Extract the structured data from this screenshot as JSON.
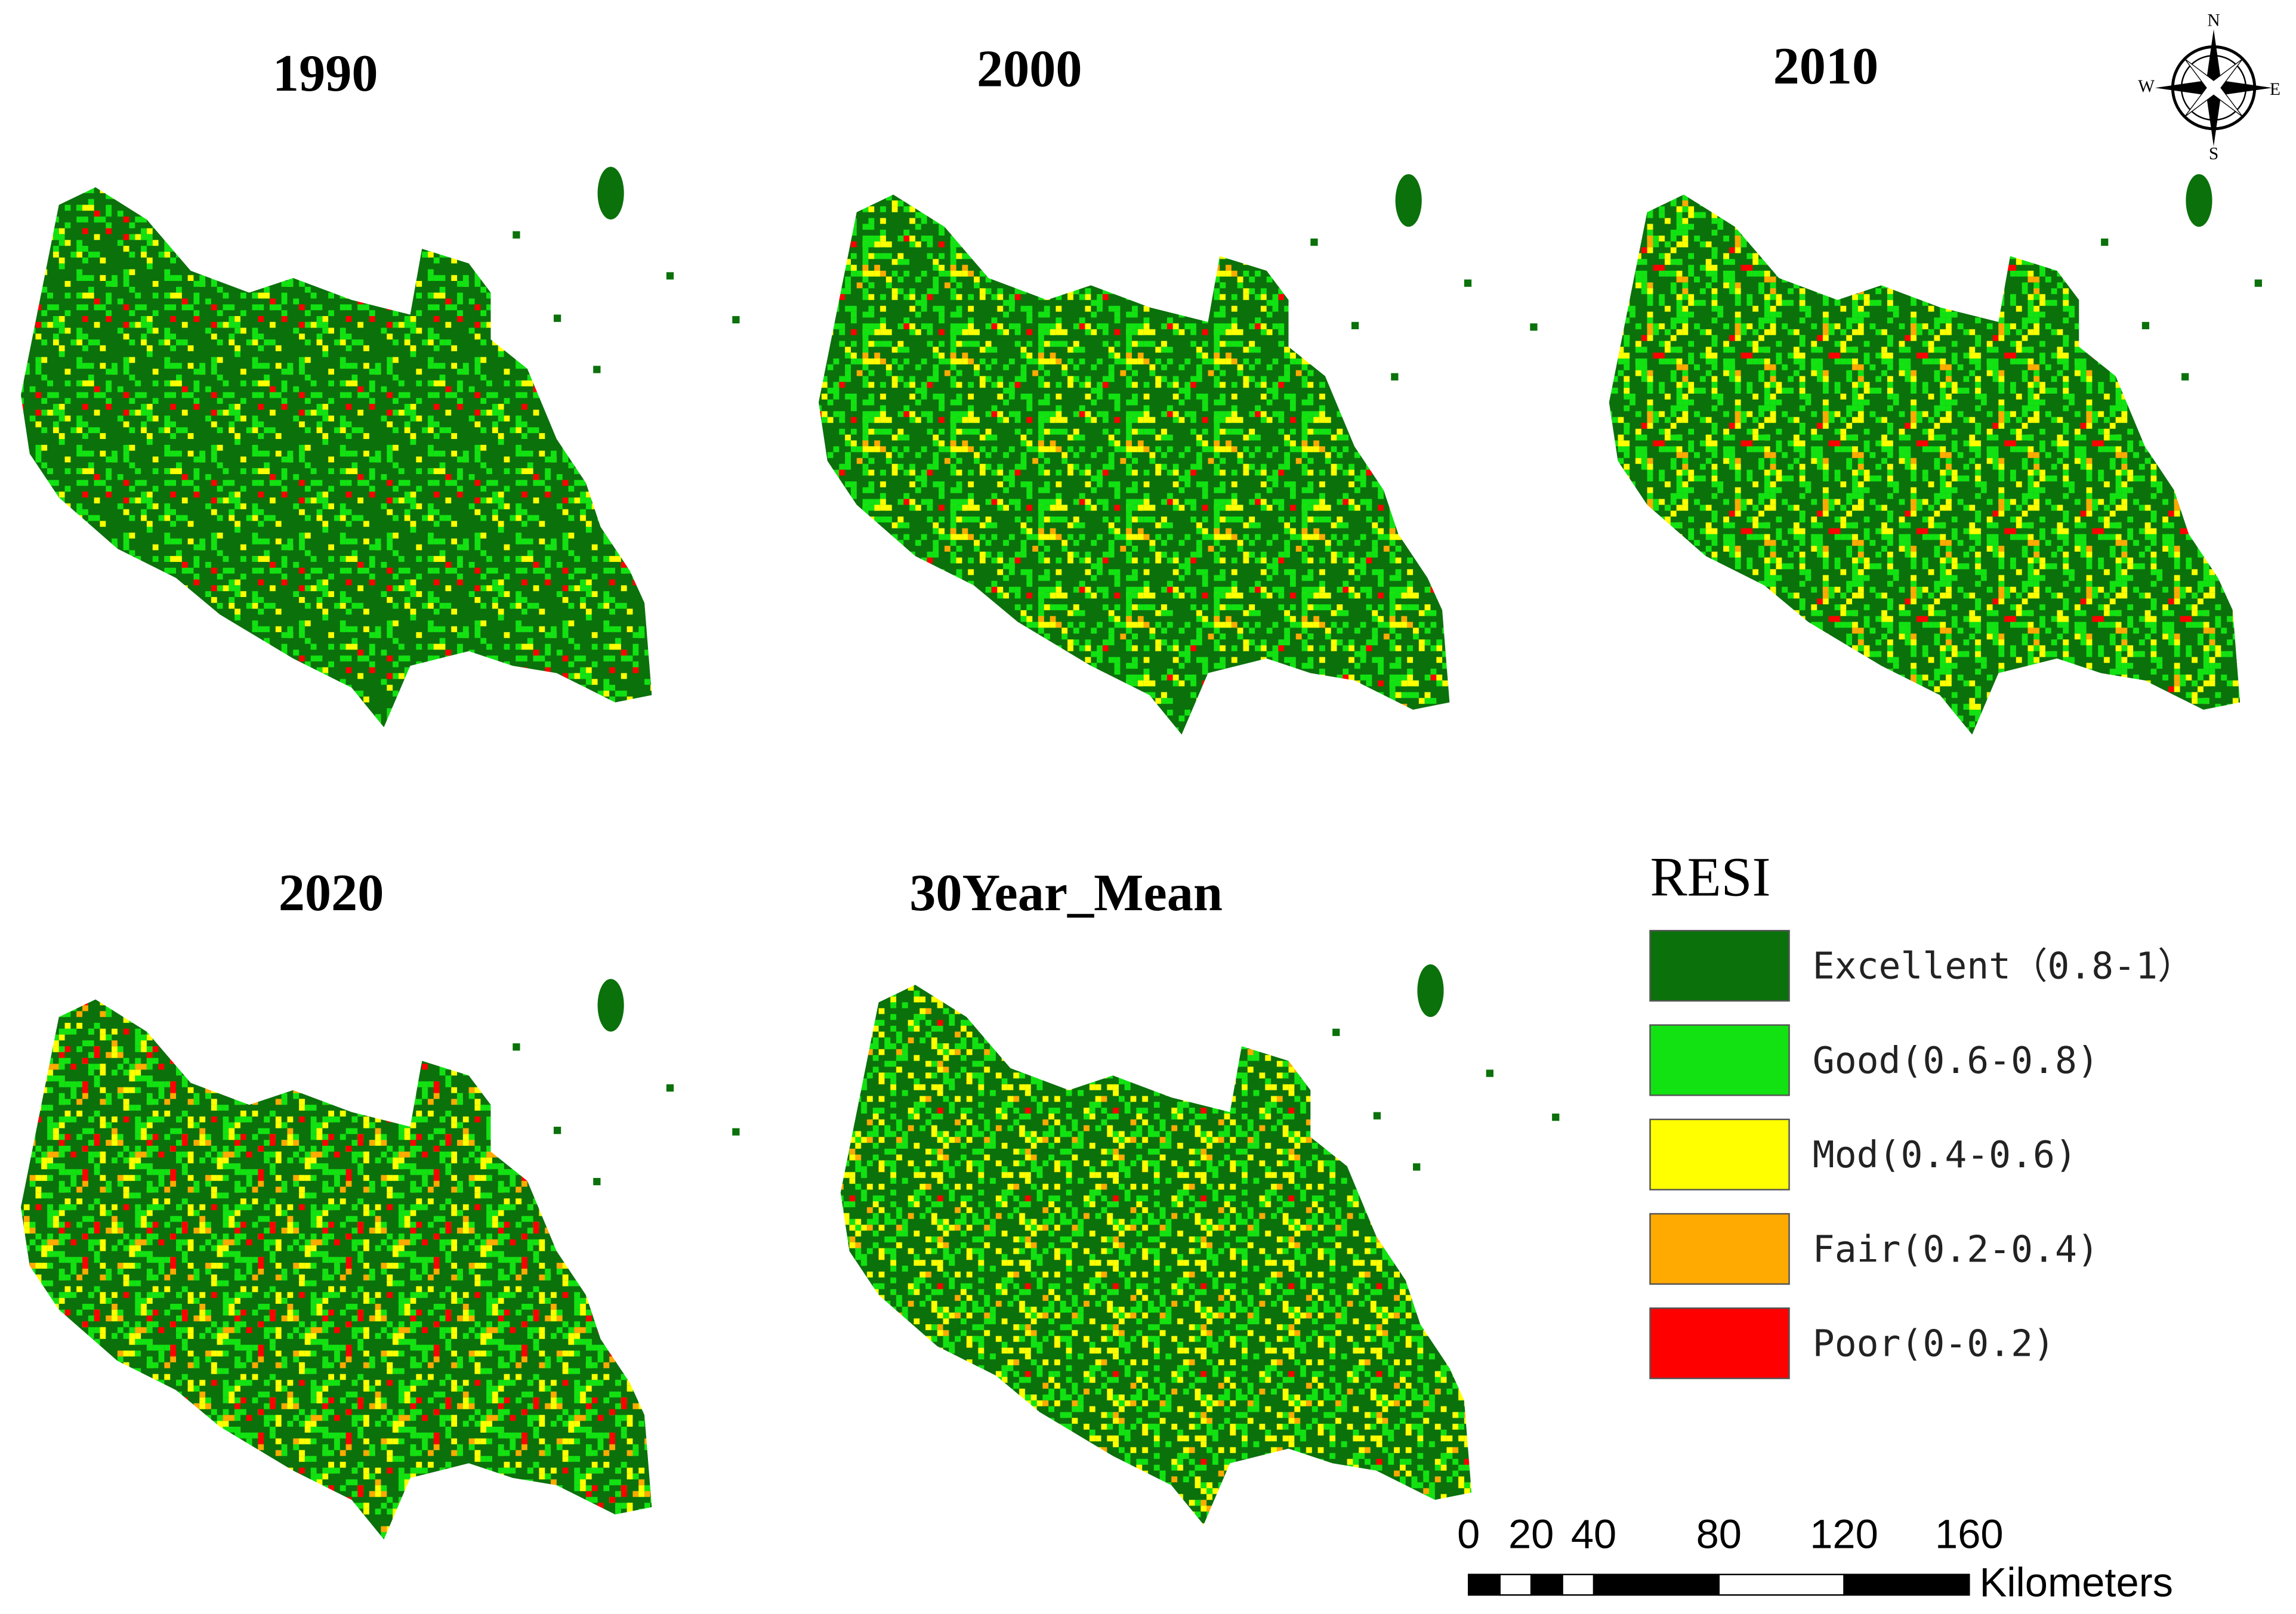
{
  "panels": [
    {
      "title": "1990"
    },
    {
      "title": "2000"
    },
    {
      "title": "2010"
    },
    {
      "title": "2020"
    },
    {
      "title": "30Year_Mean"
    }
  ],
  "compass": {
    "n": "N",
    "s": "S",
    "e": "E",
    "w": "W"
  },
  "legend": {
    "title": "RESI",
    "items": [
      {
        "label": "Excellent（0.8-1）",
        "color": "#0b710b"
      },
      {
        "label": "Good(0.6-0.8)",
        "color": "#12e212"
      },
      {
        "label": "Mod(0.4-0.6)",
        "color": "#ffff00"
      },
      {
        "label": "Fair(0.2-0.4)",
        "color": "#ffaa00"
      },
      {
        "label": "Poor(0-0.2)",
        "color": "#ff0000"
      }
    ]
  },
  "scale_bar": {
    "ticks": [
      0,
      20,
      40,
      80,
      120,
      160
    ],
    "unit": "Kilometers"
  }
}
